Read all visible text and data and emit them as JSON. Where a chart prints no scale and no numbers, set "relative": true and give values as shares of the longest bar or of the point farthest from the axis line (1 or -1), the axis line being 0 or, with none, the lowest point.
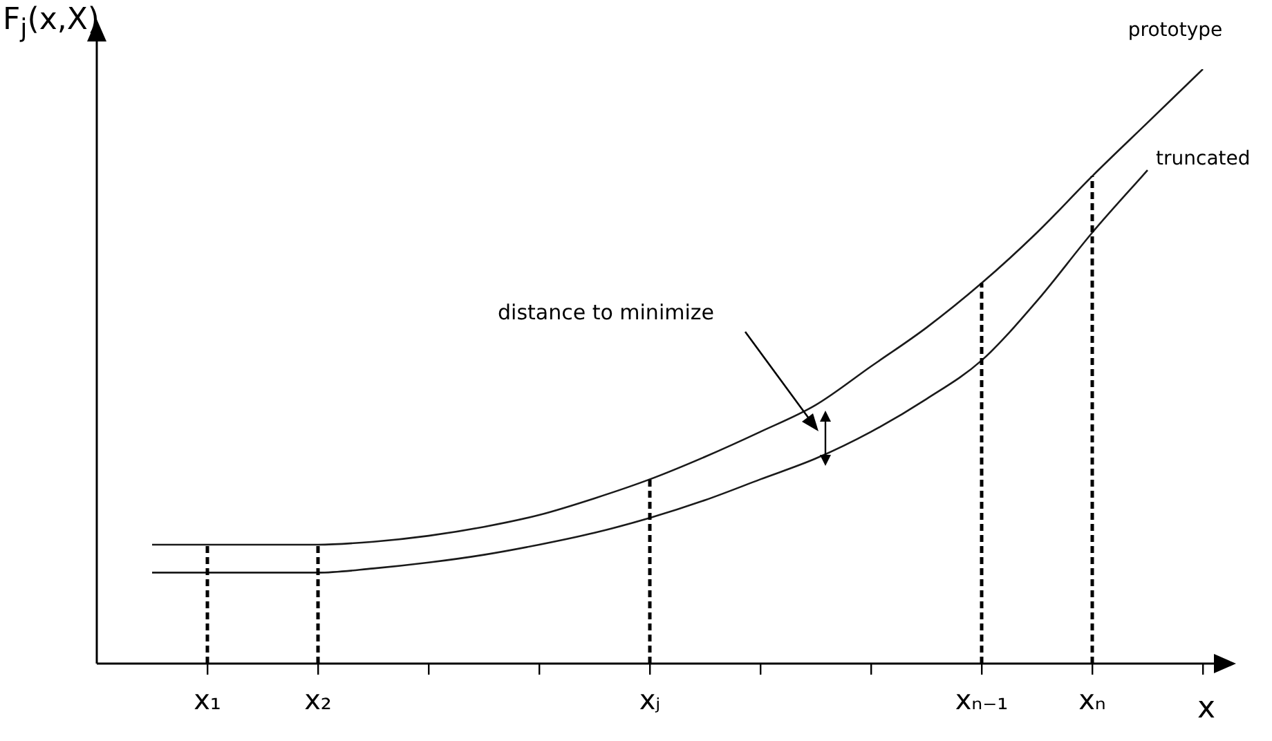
{
  "chart_data": {
    "type": "line",
    "relative": true,
    "ylabel": "F$_{j}$(x,X)",
    "xlabel": "x",
    "grid": false,
    "legend": false,
    "marker": "none",
    "line_style": "solid",
    "categories": [
      null,
      "x₁",
      null,
      "x₂",
      null,
      null,
      null,
      null,
      null,
      "xⱼ",
      null,
      null,
      null,
      null,
      null,
      "xₙ₋₁",
      null,
      "xₙ",
      null,
      null
    ],
    "series": [
      {
        "name": "prototype",
        "color": "#1a1a1a",
        "values": [
          0.2,
          0.2,
          0.2,
          0.2,
          0.205,
          0.215,
          0.23,
          0.25,
          0.278,
          0.31,
          0.348,
          0.39,
          0.435,
          0.5,
          0.565,
          0.64,
          0.725,
          0.82,
          0.91,
          1.0
        ]
      },
      {
        "name": "truncated",
        "color": "#1a1a1a",
        "values": [
          0.153,
          0.153,
          0.153,
          0.153,
          0.16,
          0.17,
          0.183,
          0.2,
          0.22,
          0.245,
          0.275,
          0.31,
          0.345,
          0.39,
          0.445,
          0.51,
          0.61,
          0.725,
          0.83,
          null
        ]
      }
    ],
    "ref_lines": [
      {
        "axis": "x",
        "value": "x₁",
        "line_style": "dashed"
      },
      {
        "axis": "x",
        "value": "x₂",
        "line_style": "dashed"
      },
      {
        "axis": "x",
        "value": "xⱼ",
        "line_style": "dashed"
      },
      {
        "axis": "x",
        "value": "xₙ₋₁",
        "line_style": "dashed"
      },
      {
        "axis": "x",
        "value": "xₙ",
        "line_style": "dashed"
      }
    ],
    "annotations": [
      "distance to minimize"
    ]
  }
}
